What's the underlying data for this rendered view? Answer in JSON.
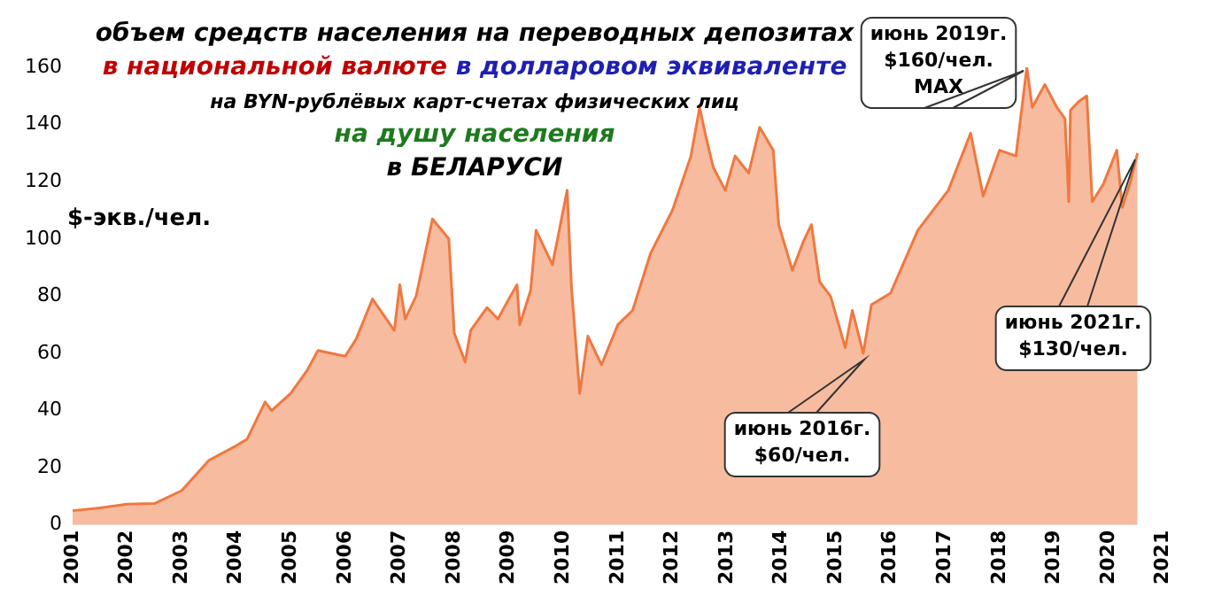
{
  "chart_data": {
    "type": "area",
    "title": "объем средств населения на переводных депозитах",
    "subtitle": "в национальной валюте в долларовом эквиваленте\nна BYN-рублёвых карт-счетах физических лиц\nна душу населения\nв БЕЛАРУСИ",
    "ylabel": "$-экв./чел.",
    "series": [
      {
        "color": "#f07840",
        "x": [
          2001.0,
          2001.5,
          2002.0,
          2002.5,
          2003.0,
          2003.5,
          2004.0,
          2004.2,
          2004.53,
          2004.65,
          2005.0,
          2005.3,
          2005.5,
          2006.0,
          2006.2,
          2006.5,
          2006.9,
          2007.0,
          2007.1,
          2007.3,
          2007.6,
          2007.9,
          2008.0,
          2008.2,
          2008.3,
          2008.6,
          2008.8,
          2009.0,
          2009.15,
          2009.2,
          2009.4,
          2009.5,
          2009.8,
          2010.07,
          2010.15,
          2010.3,
          2010.45,
          2010.7,
          2011.0,
          2011.27,
          2011.6,
          2012.0,
          2012.34,
          2012.5,
          2012.6,
          2012.75,
          2012.97,
          2013.15,
          2013.4,
          2013.6,
          2013.85,
          2013.95,
          2014.2,
          2014.4,
          2014.55,
          2014.7,
          2014.9,
          2015.17,
          2015.3,
          2015.5,
          2015.65,
          2016.0,
          2016.25,
          2016.5,
          2017.06,
          2017.47,
          2017.7,
          2018.0,
          2018.3,
          2018.5,
          2018.6,
          2018.83,
          2019.05,
          2019.2,
          2019.27,
          2019.3,
          2019.45,
          2019.6,
          2019.7,
          2019.9,
          2020.15,
          2020.25,
          2020.4,
          2020.53
        ],
        "values": [
          5,
          6,
          7.3,
          7.5,
          12,
          22.6,
          27.7,
          30,
          43,
          40,
          46,
          54,
          61,
          59,
          65,
          79,
          68,
          84,
          72,
          80,
          107,
          100,
          67,
          57,
          68,
          76,
          72,
          79,
          84,
          70,
          82,
          103,
          91,
          117,
          83,
          46,
          66,
          56,
          70,
          75,
          95,
          110,
          129,
          146,
          137,
          125,
          117,
          129,
          123,
          139,
          131,
          105,
          89,
          99,
          105,
          85,
          80,
          62,
          75,
          60,
          77,
          81,
          92,
          103,
          117,
          137,
          115,
          131,
          129,
          160,
          146,
          154,
          146,
          142,
          113,
          145,
          148,
          150,
          113,
          119,
          131,
          111,
          120,
          130
        ]
      }
    ],
    "xlim": [
      2001,
      2021
    ],
    "xticks": [
      2001,
      2002,
      2003,
      2004,
      2005,
      2006,
      2007,
      2008,
      2009,
      2010,
      2011,
      2012,
      2013,
      2014,
      2015,
      2016,
      2017,
      2018,
      2019,
      2020,
      2021
    ],
    "ylim": [
      0,
      160
    ],
    "yticks": [
      0,
      20,
      40,
      60,
      80,
      100,
      120,
      140,
      160
    ],
    "grid": false,
    "legend": false,
    "annotations": [
      "июнь 2019г.\n$160/чел.\nMAX",
      "июнь 2016г.\n$60/чел.",
      "июнь 2021г.\n$130/чел."
    ]
  }
}
